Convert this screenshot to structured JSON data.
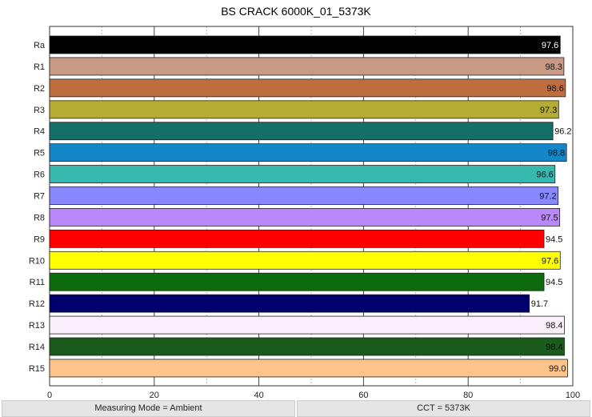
{
  "chart_data": {
    "type": "bar",
    "orientation": "horizontal",
    "title": "BS CRACK 6000K_01_5373K",
    "categories": [
      "Ra",
      "R1",
      "R2",
      "R3",
      "R4",
      "R5",
      "R6",
      "R7",
      "R8",
      "R9",
      "R10",
      "R11",
      "R12",
      "R13",
      "R14",
      "R15"
    ],
    "values": [
      97.6,
      98.3,
      98.6,
      97.3,
      96.2,
      98.8,
      96.6,
      97.2,
      97.5,
      94.5,
      97.6,
      94.5,
      91.7,
      98.4,
      98.4,
      99.0
    ],
    "colors": [
      "#000000",
      "#c89a86",
      "#bd6d3e",
      "#b5ad33",
      "#127068",
      "#1487c8",
      "#35b8ad",
      "#8888fc",
      "#bb88fb",
      "#fe0000",
      "#fefe00",
      "#0d6a0d",
      "#00006c",
      "#fdf0fd",
      "#1a5a1a",
      "#fdc48a"
    ],
    "xlim": [
      0,
      100
    ],
    "xticks": [
      0,
      20,
      40,
      60,
      80,
      100
    ],
    "grid": true
  },
  "footer": {
    "mode": "Measuring Mode = Ambient",
    "cct": "CCT = 5373K"
  }
}
